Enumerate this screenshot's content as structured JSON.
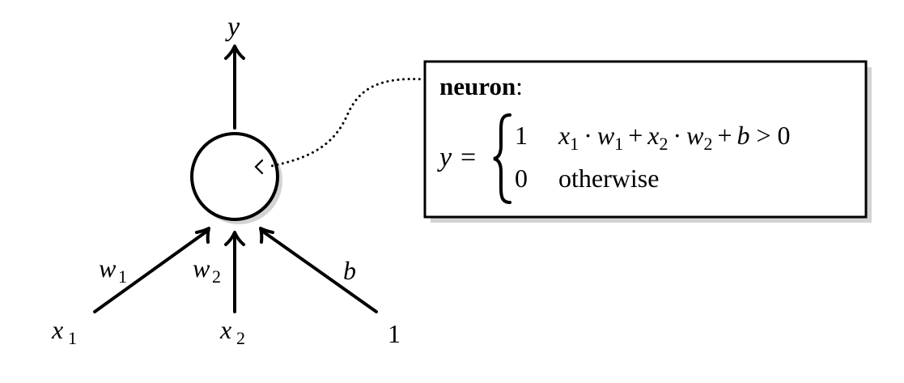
{
  "diagram": {
    "output": {
      "symbol": "y"
    },
    "inputs": [
      {
        "symbol": "x",
        "subscript": "1",
        "weight_symbol": "w",
        "weight_subscript": "1"
      },
      {
        "symbol": "x",
        "subscript": "2",
        "weight_symbol": "w",
        "weight_subscript": "2"
      },
      {
        "symbol": "1",
        "weight_symbol": "b"
      }
    ],
    "callout": {
      "title": "neuron",
      "title_colon": ":",
      "lhs": "y",
      "equals": "=",
      "cases": [
        {
          "value": "1",
          "condition": {
            "x1": "x",
            "x1_sub": "1",
            "dot1": "·",
            "w1": "w",
            "w1_sub": "1",
            "plus1": "+",
            "x2": "x",
            "x2_sub": "2",
            "dot2": "·",
            "w2": "w",
            "w2_sub": "2",
            "plus2": "+",
            "b": "b",
            "gt": ">",
            "zero": "0"
          }
        },
        {
          "value": "0",
          "otherwise": "otherwise"
        }
      ]
    }
  }
}
